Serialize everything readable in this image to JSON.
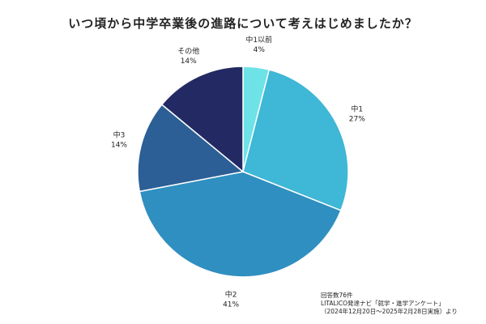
{
  "chart_data": {
    "type": "pie",
    "title": "いつ頃から中学卒業後の進路について考えはじめましたか？",
    "slices": [
      {
        "label": "中1以前",
        "value": 4,
        "value_label": "4%",
        "color": "#6de3e8"
      },
      {
        "label": "中1",
        "value": 27,
        "value_label": "27%",
        "color": "#3fb7d6"
      },
      {
        "label": "中2",
        "value": 41,
        "value_label": "41%",
        "color": "#2f8fc0"
      },
      {
        "label": "中3",
        "value": 14,
        "value_label": "14%",
        "color": "#2c5f96"
      },
      {
        "label": "その他",
        "value": 14,
        "value_label": "14%",
        "color": "#232a63"
      }
    ],
    "start_angle": "12 o'clock",
    "direction": "clockwise",
    "legend": "none"
  },
  "source": {
    "responses": "回答数76件",
    "survey": "LITALICO発達ナビ「就学・進学アンケート」",
    "period": "（2024年12月20日～2025年2月28日実施）より"
  }
}
